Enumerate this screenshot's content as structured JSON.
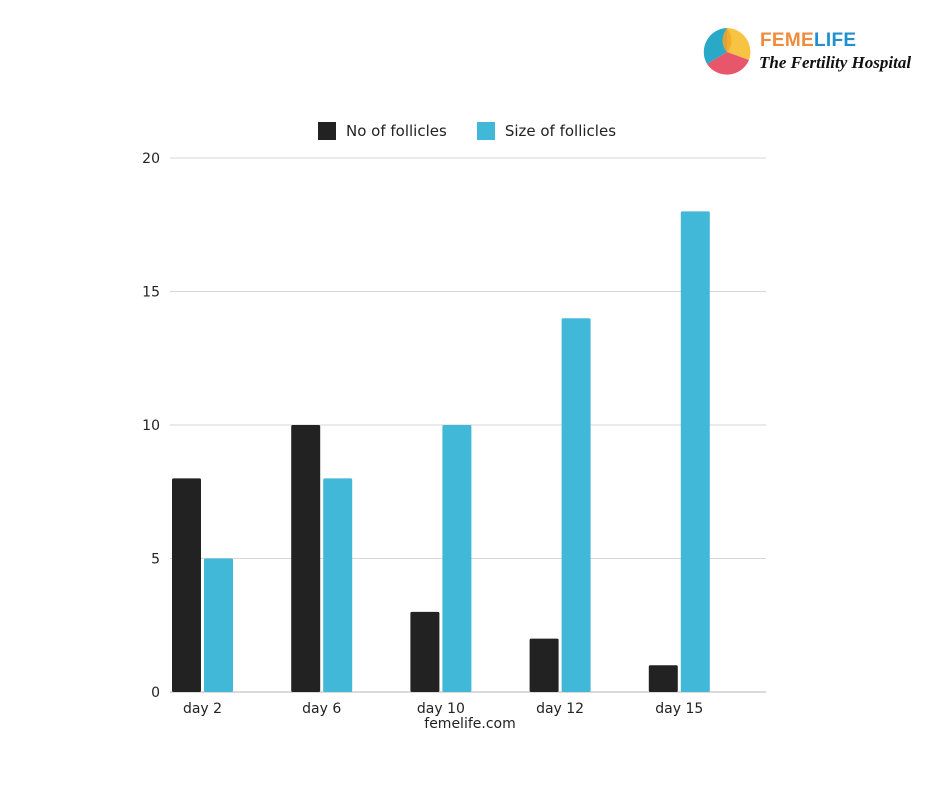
{
  "brand": {
    "name_part1": "FEME",
    "name_part2": "LIFE",
    "tagline": "The Fertility Hospital",
    "colors": {
      "part1": "#f08a3c",
      "part2": "#1f8fd0",
      "orange": "#f5a623",
      "yellow": "#f6c343",
      "pink": "#e8566c",
      "teal": "#2aa8c7"
    }
  },
  "footer": {
    "text": "femelife.com"
  },
  "chart_data": {
    "type": "bar",
    "title": "",
    "xlabel": "",
    "ylabel": "",
    "categories": [
      "day 2",
      "day 6",
      "day 10",
      "day 12",
      "day 15"
    ],
    "series": [
      {
        "name": "No of follicles",
        "color": "#222222",
        "values": [
          8,
          10,
          3,
          2,
          1
        ]
      },
      {
        "name": "Size of follicles",
        "color": "#41b8d8",
        "values": [
          5,
          8,
          10,
          14,
          18
        ]
      }
    ],
    "ylim": [
      0,
      20
    ],
    "yticks": [
      0,
      5,
      10,
      15,
      20
    ],
    "grid": true,
    "legend_position": "top"
  }
}
